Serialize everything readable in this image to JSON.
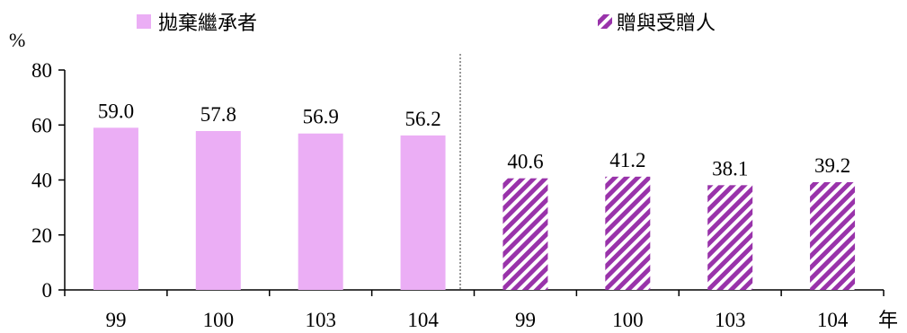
{
  "chart_data": {
    "type": "bar",
    "ylabel": "%",
    "xlabel": "年",
    "ylim": [
      0,
      80
    ],
    "yticks": [
      "0",
      "20",
      "40",
      "60",
      "80"
    ],
    "categories": [
      "99",
      "100",
      "103",
      "104",
      "99",
      "100",
      "103",
      "104"
    ],
    "series": [
      {
        "name": "拋棄繼承者",
        "color": "#EBAEF5",
        "pattern": "solid",
        "values": [
          59.0,
          57.8,
          56.9,
          56.2,
          null,
          null,
          null,
          null
        ],
        "labels": [
          "59.0",
          "57.8",
          "56.9",
          "56.2"
        ]
      },
      {
        "name": "贈與受贈人",
        "color": "#9933AA",
        "pattern": "diagonal-stripes",
        "values": [
          null,
          null,
          null,
          null,
          40.6,
          41.2,
          38.1,
          39.2
        ],
        "labels": [
          "40.6",
          "41.2",
          "38.1",
          "39.2"
        ]
      }
    ],
    "grid": false,
    "legend": "top"
  }
}
